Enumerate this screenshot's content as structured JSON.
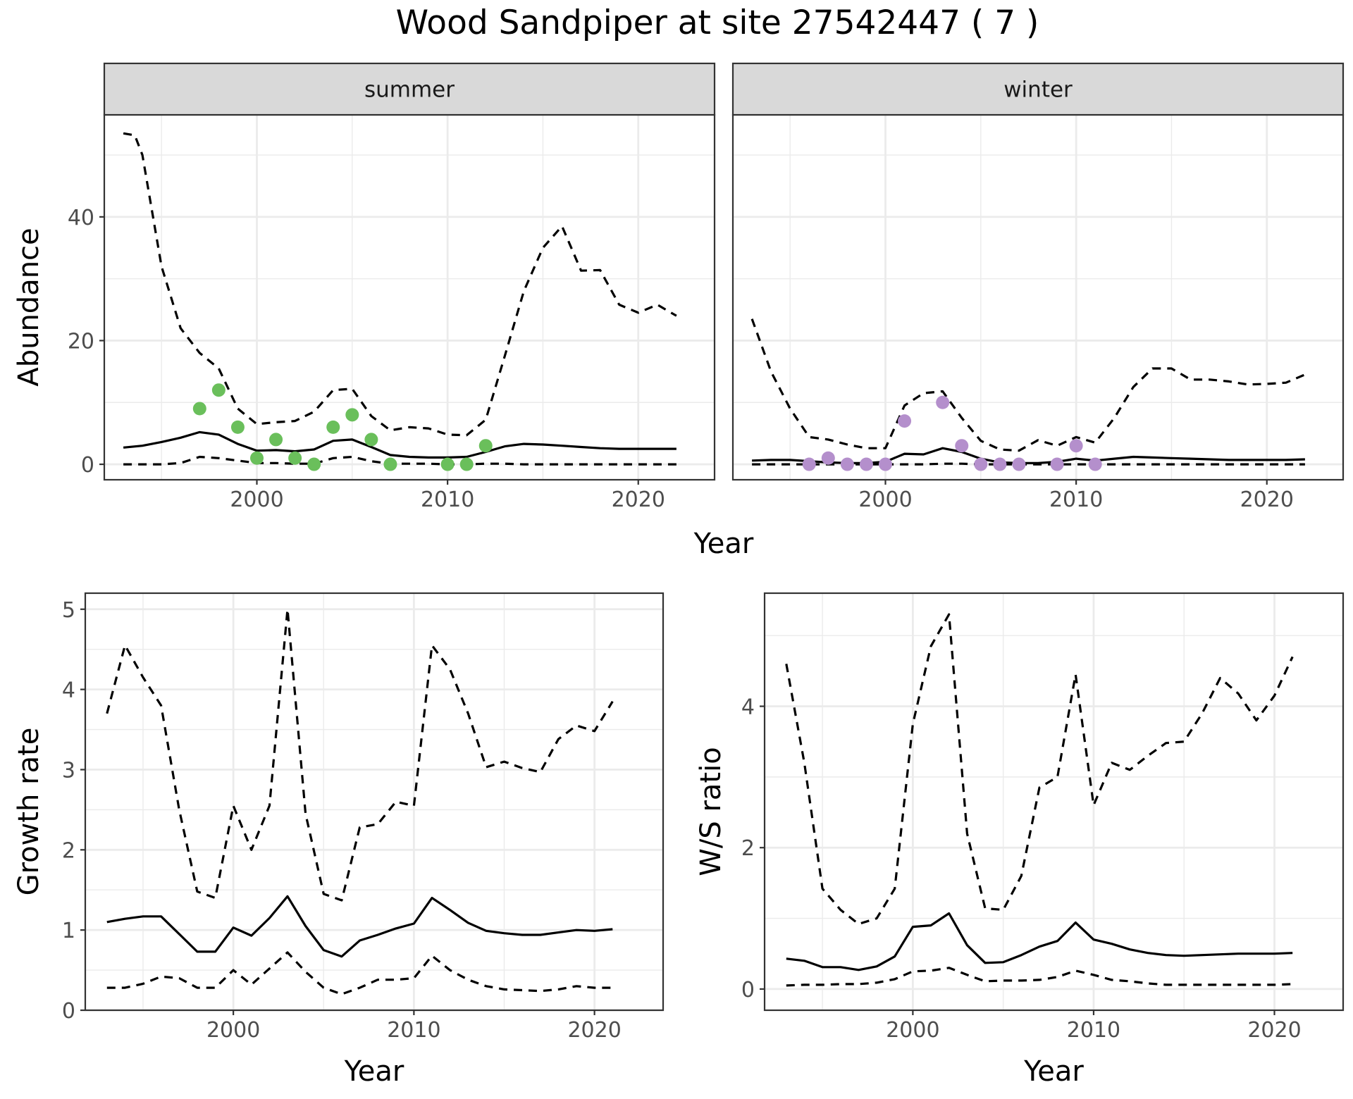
{
  "title": "Wood Sandpiper at site 27542447 ( 7 )",
  "colors": {
    "summer_points": "#6abf5b",
    "winter_points": "#b48fcc",
    "line": "#000000",
    "strip_bg": "#d9d9d9",
    "grid": "#ebebeb"
  },
  "chart_data": [
    {
      "type": "line",
      "panel": "summer",
      "strip": "summer",
      "xlabel": "Year",
      "ylabel": "Abundance",
      "xlim": [
        1992,
        2024
      ],
      "ylim": [
        -2.5,
        56.5
      ],
      "x_ticks": [
        2000,
        2010,
        2020
      ],
      "y_ticks": [
        0,
        20,
        40
      ],
      "grid": true,
      "series": [
        {
          "role": "mean",
          "style": "solid",
          "x": [
            1993,
            1994,
            1995,
            1996,
            1997,
            1998,
            1999,
            2000,
            2001,
            2002,
            2003,
            2004,
            2005,
            2006,
            2007,
            2008,
            2009,
            2010,
            2011,
            2012,
            2013,
            2014,
            2015,
            2016,
            2017,
            2018,
            2019,
            2020,
            2021,
            2022
          ],
          "y": [
            2.7,
            3.0,
            3.6,
            4.3,
            5.2,
            4.8,
            3.3,
            2.2,
            2.3,
            2.1,
            2.4,
            3.8,
            4.0,
            2.8,
            1.5,
            1.2,
            1.1,
            1.1,
            1.2,
            2.0,
            2.9,
            3.3,
            3.2,
            3.0,
            2.8,
            2.6,
            2.5,
            2.5,
            2.5,
            2.5
          ]
        },
        {
          "role": "upper",
          "style": "dashed",
          "x": [
            1993,
            1993.6,
            1994,
            1995,
            1996,
            1997,
            1998,
            1999,
            2000,
            2001,
            2002,
            2003,
            2004,
            2005,
            2006,
            2007,
            2008,
            2009,
            2010,
            2011,
            2012,
            2013,
            2014,
            2015,
            2016,
            2017,
            2018,
            2019,
            2020,
            2021,
            2022
          ],
          "y": [
            53.5,
            53.2,
            50,
            32,
            22,
            18,
            15.5,
            9,
            6.5,
            6.8,
            7,
            8.5,
            12,
            12.2,
            7.8,
            5.5,
            6,
            5.8,
            4.8,
            4.7,
            7.2,
            17.5,
            28,
            35,
            38.5,
            31.3,
            31.4,
            25.8,
            24.5,
            25.8,
            24
          ]
        },
        {
          "role": "lower",
          "style": "dashed",
          "x": [
            1993,
            1994,
            1995,
            1996,
            1997,
            1998,
            1999,
            2000,
            2001,
            2002,
            2003,
            2004,
            2005,
            2006,
            2007,
            2008,
            2009,
            2010,
            2011,
            2012,
            2013,
            2014,
            2015,
            2016,
            2017,
            2018,
            2019,
            2020,
            2021,
            2022
          ],
          "y": [
            0,
            0,
            0,
            0.2,
            1.2,
            1.0,
            0.6,
            0.2,
            0.2,
            0.1,
            0.1,
            1.0,
            1.2,
            0.5,
            0.1,
            0.1,
            0.1,
            0,
            0,
            0.1,
            0.1,
            0,
            0,
            0,
            0,
            0,
            0,
            0,
            0,
            0
          ]
        }
      ],
      "points": {
        "x": [
          1997,
          1998,
          1999,
          2000,
          2001,
          2002,
          2003,
          2004,
          2005,
          2006,
          2007,
          2010,
          2011,
          2012
        ],
        "y": [
          9,
          12,
          6,
          1,
          4,
          1,
          0,
          6,
          8,
          4,
          0,
          0,
          0,
          3
        ]
      }
    },
    {
      "type": "line",
      "panel": "winter",
      "strip": "winter",
      "xlabel": "Year",
      "ylabel": "Abundance",
      "xlim": [
        1992,
        2024
      ],
      "ylim": [
        -2.5,
        56.5
      ],
      "x_ticks": [
        2000,
        2010,
        2020
      ],
      "y_ticks": [
        0,
        20,
        40
      ],
      "grid": true,
      "series": [
        {
          "role": "mean",
          "style": "solid",
          "x": [
            1993,
            1994,
            1995,
            1996,
            1997,
            1998,
            1999,
            2000,
            2001,
            2002,
            2003,
            2004,
            2005,
            2006,
            2007,
            2008,
            2009,
            2010,
            2011,
            2012,
            2013,
            2014,
            2015,
            2016,
            2017,
            2018,
            2019,
            2020,
            2021,
            2022
          ],
          "y": [
            0.6,
            0.7,
            0.7,
            0.5,
            0.3,
            0.2,
            0.2,
            0.4,
            1.7,
            1.6,
            2.6,
            2.0,
            0.9,
            0.3,
            0.2,
            0.2,
            0.4,
            0.9,
            0.6,
            0.9,
            1.2,
            1.1,
            1.0,
            0.9,
            0.8,
            0.7,
            0.7,
            0.7,
            0.7,
            0.8
          ]
        },
        {
          "role": "upper",
          "style": "dashed",
          "x": [
            1993,
            1994,
            1995,
            1996,
            1997,
            1998,
            1999,
            2000,
            2001,
            2002,
            2003,
            2004,
            2005,
            2006,
            2007,
            2008,
            2009,
            2010,
            2011,
            2012,
            2013,
            2014,
            2015,
            2016,
            2017,
            2018,
            2019,
            2020,
            2021,
            2022
          ],
          "y": [
            23.5,
            15,
            9,
            4.4,
            4,
            3.2,
            2.6,
            2.6,
            9.5,
            11.5,
            11.8,
            7.5,
            3.8,
            2.4,
            2.2,
            3.9,
            3,
            4.4,
            3.5,
            7.5,
            12.5,
            15.5,
            15.5,
            13.7,
            13.7,
            13.4,
            12.9,
            13.0,
            13.2,
            14.5
          ]
        },
        {
          "role": "lower",
          "style": "dashed",
          "x": [
            1993,
            1994,
            1995,
            1996,
            1997,
            1998,
            1999,
            2000,
            2001,
            2002,
            2003,
            2004,
            2005,
            2006,
            2007,
            2008,
            2009,
            2010,
            2011,
            2012,
            2013,
            2014,
            2015,
            2016,
            2017,
            2018,
            2019,
            2020,
            2021,
            2022
          ],
          "y": [
            0,
            0,
            0,
            0,
            0,
            0,
            0,
            0,
            0,
            0,
            0.1,
            0.1,
            0,
            0,
            0,
            0,
            0,
            0,
            0,
            0,
            0,
            0,
            0,
            0,
            0,
            0,
            0,
            0,
            0,
            0
          ]
        }
      ],
      "points": {
        "x": [
          1996,
          1997,
          1998,
          1999,
          2000,
          2001,
          2003,
          2004,
          2005,
          2006,
          2007,
          2009,
          2010,
          2011
        ],
        "y": [
          0,
          1,
          0,
          0,
          0,
          7,
          10,
          3,
          0,
          0,
          0,
          0,
          3,
          0
        ]
      }
    },
    {
      "type": "line",
      "panel": "growth",
      "xlabel": "Year",
      "ylabel": "Growth rate",
      "xlim": [
        1991.8,
        2023.8
      ],
      "ylim": [
        0,
        5.2
      ],
      "x_ticks": [
        2000,
        2010,
        2020
      ],
      "y_ticks": [
        0,
        1,
        2,
        3,
        4,
        5
      ],
      "grid": true,
      "series": [
        {
          "role": "mean",
          "style": "solid",
          "x": [
            1993,
            1994,
            1995,
            1996,
            1997,
            1998,
            1999,
            2000,
            2001,
            2002,
            2003,
            2004,
            2005,
            2006,
            2007,
            2008,
            2009,
            2010,
            2011,
            2012,
            2013,
            2014,
            2015,
            2016,
            2017,
            2018,
            2019,
            2020,
            2021
          ],
          "y": [
            1.1,
            1.14,
            1.17,
            1.17,
            0.95,
            0.73,
            0.73,
            1.03,
            0.93,
            1.15,
            1.42,
            1.05,
            0.75,
            0.67,
            0.87,
            0.94,
            1.02,
            1.08,
            1.4,
            1.25,
            1.09,
            0.99,
            0.96,
            0.94,
            0.94,
            0.97,
            1.0,
            0.99,
            1.01
          ]
        },
        {
          "role": "upper",
          "style": "dashed",
          "x": [
            1993,
            1994,
            1995,
            1996,
            1997,
            1998,
            1999,
            2000,
            2001,
            2002,
            2003,
            2004,
            2005,
            2006,
            2007,
            2008,
            2009,
            2010,
            2011,
            2012,
            2013,
            2014,
            2015,
            2016,
            2017,
            2018,
            2019,
            2020,
            2021
          ],
          "y": [
            3.7,
            4.55,
            4.15,
            3.8,
            2.5,
            1.48,
            1.4,
            2.55,
            2.0,
            2.55,
            5.0,
            2.45,
            1.45,
            1.37,
            2.28,
            2.32,
            2.6,
            2.55,
            4.55,
            4.25,
            3.7,
            3.03,
            3.1,
            3.02,
            2.97,
            3.38,
            3.55,
            3.48,
            3.85
          ]
        },
        {
          "role": "lower",
          "style": "dashed",
          "x": [
            1993,
            1994,
            1995,
            1996,
            1997,
            1998,
            1999,
            2000,
            2001,
            2002,
            2003,
            2004,
            2005,
            2006,
            2007,
            2008,
            2009,
            2010,
            2011,
            2012,
            2013,
            2014,
            2015,
            2016,
            2017,
            2018,
            2019,
            2020,
            2021
          ],
          "y": [
            0.28,
            0.28,
            0.33,
            0.42,
            0.4,
            0.28,
            0.28,
            0.5,
            0.32,
            0.52,
            0.72,
            0.48,
            0.28,
            0.2,
            0.28,
            0.38,
            0.38,
            0.4,
            0.68,
            0.5,
            0.38,
            0.3,
            0.26,
            0.25,
            0.24,
            0.26,
            0.3,
            0.28,
            0.28
          ]
        }
      ]
    },
    {
      "type": "line",
      "panel": "ratio",
      "xlabel": "Year",
      "ylabel": "W/S ratio",
      "xlim": [
        1991.8,
        2023.8
      ],
      "ylim": [
        -0.3,
        5.6
      ],
      "x_ticks": [
        2000,
        2010,
        2020
      ],
      "y_ticks": [
        0,
        2,
        4
      ],
      "grid": true,
      "series": [
        {
          "role": "mean",
          "style": "solid",
          "x": [
            1993,
            1994,
            1995,
            1996,
            1997,
            1998,
            1999,
            2000,
            2001,
            2002,
            2003,
            2004,
            2005,
            2006,
            2007,
            2008,
            2009,
            2010,
            2011,
            2012,
            2013,
            2014,
            2015,
            2016,
            2017,
            2018,
            2019,
            2020,
            2021
          ],
          "y": [
            0.43,
            0.4,
            0.31,
            0.31,
            0.27,
            0.32,
            0.46,
            0.88,
            0.9,
            1.07,
            0.62,
            0.37,
            0.38,
            0.48,
            0.6,
            0.68,
            0.94,
            0.7,
            0.64,
            0.56,
            0.51,
            0.48,
            0.47,
            0.48,
            0.49,
            0.5,
            0.5,
            0.5,
            0.51
          ]
        },
        {
          "role": "upper",
          "style": "dashed",
          "x": [
            1993,
            1994,
            1995,
            1996,
            1997,
            1998,
            1999,
            2000,
            2001,
            2002,
            2003,
            2004,
            2005,
            2006,
            2007,
            2008,
            2009,
            2010,
            2011,
            2012,
            2013,
            2014,
            2015,
            2016,
            2017,
            2018,
            2019,
            2020,
            2021
          ],
          "y": [
            4.6,
            3.2,
            1.42,
            1.12,
            0.92,
            1.0,
            1.42,
            3.75,
            4.85,
            5.3,
            2.2,
            1.14,
            1.12,
            1.6,
            2.85,
            3.0,
            4.45,
            2.6,
            3.2,
            3.1,
            3.3,
            3.48,
            3.5,
            3.9,
            4.4,
            4.18,
            3.8,
            4.15,
            4.7
          ]
        },
        {
          "role": "lower",
          "style": "dashed",
          "x": [
            1993,
            1994,
            1995,
            1996,
            1997,
            1998,
            1999,
            2000,
            2001,
            2002,
            2003,
            2004,
            2005,
            2006,
            2007,
            2008,
            2009,
            2010,
            2011,
            2012,
            2013,
            2014,
            2015,
            2016,
            2017,
            2018,
            2019,
            2020,
            2021
          ],
          "y": [
            0.05,
            0.06,
            0.06,
            0.07,
            0.07,
            0.09,
            0.14,
            0.25,
            0.26,
            0.3,
            0.2,
            0.11,
            0.12,
            0.12,
            0.13,
            0.17,
            0.26,
            0.2,
            0.13,
            0.11,
            0.08,
            0.06,
            0.06,
            0.06,
            0.06,
            0.06,
            0.06,
            0.06,
            0.07
          ]
        }
      ]
    }
  ]
}
